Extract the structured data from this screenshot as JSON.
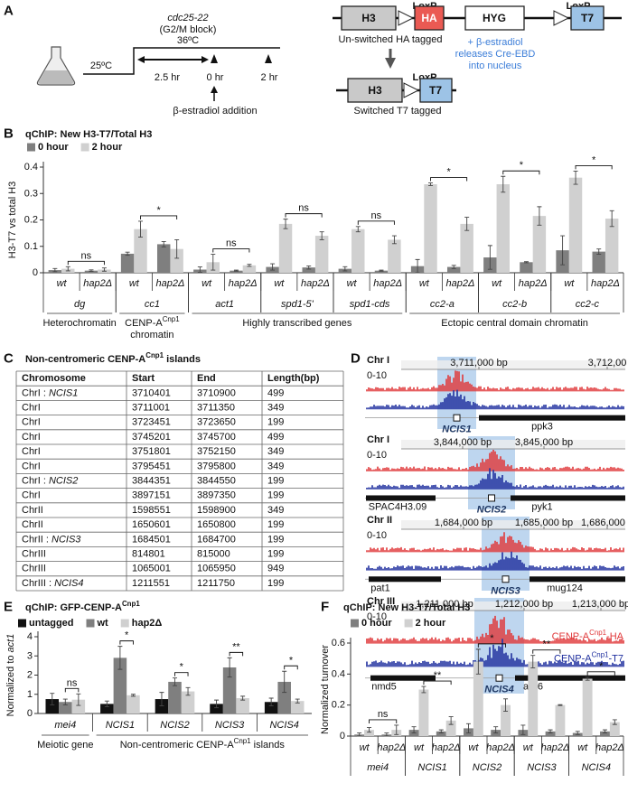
{
  "panel_a": {
    "label": "A",
    "strain": "cdc25-22",
    "block": "(G2/M block)",
    "temp_high": "36ºC",
    "temp_low": "25ºC",
    "duration": "2.5 hr",
    "t0": "0 hr",
    "t2": "2 hr",
    "treatment": "β-estradiol addition",
    "construct": {
      "h3": "H3",
      "loxp_1": "LoxP",
      "ha": "HA",
      "hyg": "HYG",
      "loxp_2": "LoxP",
      "t7": "T7",
      "caption": "Un-switched HA tagged"
    },
    "switch_note": [
      "+ β-estradiol",
      "releases Cre-EBD",
      "into nucleus"
    ],
    "switched": {
      "h3": "H3",
      "loxp": "LoxP",
      "t7": "T7",
      "caption": "Switched T7 tagged"
    }
  },
  "panel_c": {
    "label": "C",
    "title": [
      "Non-centromeric CENP-A",
      {
        "sup": "Cnp1"
      },
      " islands"
    ],
    "table": {
      "header": [
        "Chromosome",
        "Start",
        "End",
        "Length(bp)"
      ],
      "rows": [
        [
          [
            "ChrI : ",
            {
              "italic": "NCIS1"
            }
          ],
          3710401,
          3710900,
          499
        ],
        [
          "ChrI",
          3711001,
          3711350,
          349
        ],
        [
          "ChrI",
          3723451,
          3723650,
          199
        ],
        [
          "ChrI",
          3745201,
          3745700,
          499
        ],
        [
          "ChrI",
          3751801,
          3752150,
          349
        ],
        [
          "ChrI",
          3795451,
          3795800,
          349
        ],
        [
          [
            "ChrI : ",
            {
              "italic": "NCIS2"
            }
          ],
          3844351,
          3844550,
          199
        ],
        [
          "ChrI",
          3897151,
          3897350,
          199
        ],
        [
          "ChrII",
          1598551,
          1598900,
          349
        ],
        [
          "ChrII",
          1650601,
          1650800,
          199
        ],
        [
          [
            "ChrII : ",
            {
              "italic": "NCIS3"
            }
          ],
          1684501,
          1684700,
          199
        ],
        [
          "ChrIII",
          814801,
          815000,
          199
        ],
        [
          "ChrIII",
          1065001,
          1065950,
          949
        ],
        [
          [
            "ChrIII : ",
            {
              "italic": "NCIS4"
            }
          ],
          1211551,
          1211750,
          199
        ]
      ]
    }
  },
  "panel_d": {
    "label": "D",
    "tracks": [
      {
        "chrom": "Chr I",
        "coords": [
          "3,711,000 bp",
          "3,712,00"
        ],
        "scale": "0-10",
        "region": "NCIS1",
        "genes": [
          "ppk3"
        ]
      },
      {
        "chrom": "Chr I",
        "coords": [
          "3,844,000 bp",
          "3,845,000 bp"
        ],
        "scale": "0-10",
        "region": "NCIS2",
        "genes": [
          "SPAC4H3.09",
          "pyk1"
        ]
      },
      {
        "chrom": "Chr II",
        "coords": [
          "1,684,000 bp",
          "1,685,000 bp",
          "1,686,000 b"
        ],
        "scale": "0-10",
        "region": "NCIS3",
        "genes": [
          "pat1",
          "mug124"
        ]
      },
      {
        "chrom": "Chr III",
        "coords": [
          "1,211,000 bp",
          "1,212,000 bp",
          "1,213,000 bp"
        ],
        "scale": "0-10",
        "region": "NCIS4",
        "genes": [
          "nmd5",
          "arp6"
        ]
      }
    ],
    "legend": [
      [
        "CENP-A",
        {
          "sup": "Cnp1"
        },
        "-HA"
      ],
      [
        "CENP-A",
        {
          "sup": "Cnp1"
        },
        "-T7"
      ]
    ]
  },
  "chart_data": [
    {
      "type": "bar",
      "panel": "B",
      "title": "qChIP: New H3-T7/Total H3",
      "ylabel": "H3-T7 vs total H3",
      "ylim": [
        0,
        0.4
      ],
      "yticks": [
        0,
        0.1,
        0.2,
        0.3,
        0.4
      ],
      "sections": [
        {
          "label": "Heterochromatin",
          "loci": [
            {
              "name": "dg",
              "categories": [
                "wt",
                "hap2Δ"
              ]
            }
          ]
        },
        {
          "label": [
            "CENP-A",
            {
              "sup": "Cnp1"
            },
            {
              "newline": "chromatin"
            }
          ],
          "loci": [
            {
              "name": "cc1",
              "categories": [
                "wt",
                "hap2Δ"
              ]
            }
          ]
        },
        {
          "label": "Highly transcribed genes",
          "loci": [
            {
              "name": "act1",
              "categories": [
                "wt",
                "hap2Δ"
              ]
            },
            {
              "name": "spd1-5'",
              "categories": [
                "wt",
                "hap2Δ"
              ]
            },
            {
              "name": "spd1-cds",
              "categories": [
                "wt",
                "hap2Δ"
              ]
            }
          ]
        },
        {
          "label": "Ectopic central domain chromatin",
          "loci": [
            {
              "name": "cc2-a",
              "categories": [
                "wt",
                "hap2Δ"
              ]
            },
            {
              "name": "cc2-b",
              "categories": [
                "wt",
                "hap2Δ"
              ]
            },
            {
              "name": "cc2-c",
              "categories": [
                "wt",
                "hap2Δ"
              ]
            }
          ]
        }
      ],
      "series": [
        {
          "name": "0 hour",
          "color": "#7f7f7f",
          "values": [
            0.01,
            0.008,
            0.072,
            0.108,
            0.012,
            0.008,
            0.022,
            0.02,
            0.015,
            0.008,
            0.025,
            0.022,
            0.058,
            0.04,
            0.085,
            0.08
          ],
          "errors": [
            0.006,
            0.003,
            0.006,
            0.01,
            0.01,
            0.002,
            0.012,
            0.006,
            0.008,
            0.002,
            0.025,
            0.006,
            0.045,
            0.002,
            0.055,
            0.01
          ]
        },
        {
          "name": "2 hour",
          "color": "#d0d0d0",
          "values": [
            0.015,
            0.012,
            0.165,
            0.09,
            0.04,
            0.028,
            0.185,
            0.14,
            0.165,
            0.125,
            0.335,
            0.185,
            0.335,
            0.215,
            0.36,
            0.205
          ],
          "errors": [
            0.008,
            0.006,
            0.03,
            0.035,
            0.03,
            0.004,
            0.018,
            0.015,
            0.01,
            0.015,
            0.005,
            0.025,
            0.03,
            0.035,
            0.025,
            0.03
          ]
        }
      ],
      "annotations": [
        "ns",
        "*",
        "ns",
        "ns",
        "ns",
        "*",
        "*",
        "*"
      ]
    },
    {
      "type": "bar",
      "panel": "E",
      "title": [
        "qChIP: GFP-CENP-A",
        {
          "sup": "Cnp1"
        }
      ],
      "ylabel": [
        "Normalized to ",
        {
          "italic": "act1"
        }
      ],
      "ylim": [
        0,
        4
      ],
      "yticks": [
        0,
        1,
        2,
        3,
        4
      ],
      "sections": [
        {
          "label": "Meiotic gene",
          "categories": [
            "mei4"
          ]
        },
        {
          "label": [
            "Non-centromeric CENP-A",
            {
              "sup": "Cnp1"
            },
            " islands"
          ],
          "categories": [
            "NCIS1",
            "NCIS2",
            "NCIS3",
            "NCIS4"
          ]
        }
      ],
      "series": [
        {
          "name": "untagged",
          "color": "#111111",
          "values": [
            0.75,
            0.5,
            0.75,
            0.5,
            0.6
          ],
          "errors": [
            0.3,
            0.15,
            0.35,
            0.2,
            0.2
          ]
        },
        {
          "name": "wt",
          "color": "#7f7f7f",
          "values": [
            0.6,
            2.9,
            1.65,
            2.4,
            1.65
          ],
          "errors": [
            0.15,
            0.6,
            0.2,
            0.5,
            0.55
          ]
        },
        {
          "name": "hap2Δ",
          "color": "#d0d0d0",
          "values": [
            0.72,
            0.95,
            1.15,
            0.8,
            0.65
          ],
          "errors": [
            0.3,
            0.05,
            0.2,
            0.1,
            0.1
          ]
        }
      ],
      "annotations": [
        "ns",
        "*",
        "*",
        "**",
        "*"
      ]
    },
    {
      "type": "bar",
      "panel": "F",
      "title": "qChIP: New H3-T7/Total H3",
      "ylabel": "Normalized turnover",
      "ylim": [
        0,
        0.6
      ],
      "yticks": [
        0,
        0.2,
        0.4,
        0.6
      ],
      "loci": [
        {
          "name": "mei4",
          "categories": [
            "wt",
            "hap2Δ"
          ]
        },
        {
          "name": "NCIS1",
          "categories": [
            "wt",
            "hap2Δ"
          ]
        },
        {
          "name": "NCIS2",
          "categories": [
            "wt",
            "hap2Δ"
          ]
        },
        {
          "name": "NCIS3",
          "categories": [
            "wt",
            "hap2Δ"
          ]
        },
        {
          "name": "NCIS4",
          "categories": [
            "wt",
            "hap2Δ"
          ]
        }
      ],
      "series": [
        {
          "name": "0 hour",
          "color": "#7f7f7f",
          "values": [
            0.01,
            0.01,
            0.04,
            0.03,
            0.05,
            0.04,
            0.04,
            0.03,
            0.02,
            0.03
          ],
          "errors": [
            0.01,
            0.01,
            0.02,
            0.01,
            0.03,
            0.02,
            0.03,
            0.01,
            0.01,
            0.01
          ]
        },
        {
          "name": "2 hour",
          "color": "#d0d0d0",
          "values": [
            0.04,
            0.04,
            0.3,
            0.1,
            0.48,
            0.2,
            0.48,
            0.2,
            0.37,
            0.09
          ],
          "errors": [
            0.015,
            0.03,
            0.02,
            0.025,
            0.08,
            0.04,
            0.04,
            0.003,
            0.01,
            0.015
          ]
        }
      ],
      "annotations": [
        "ns",
        "**",
        "*",
        "**",
        "*"
      ]
    }
  ]
}
